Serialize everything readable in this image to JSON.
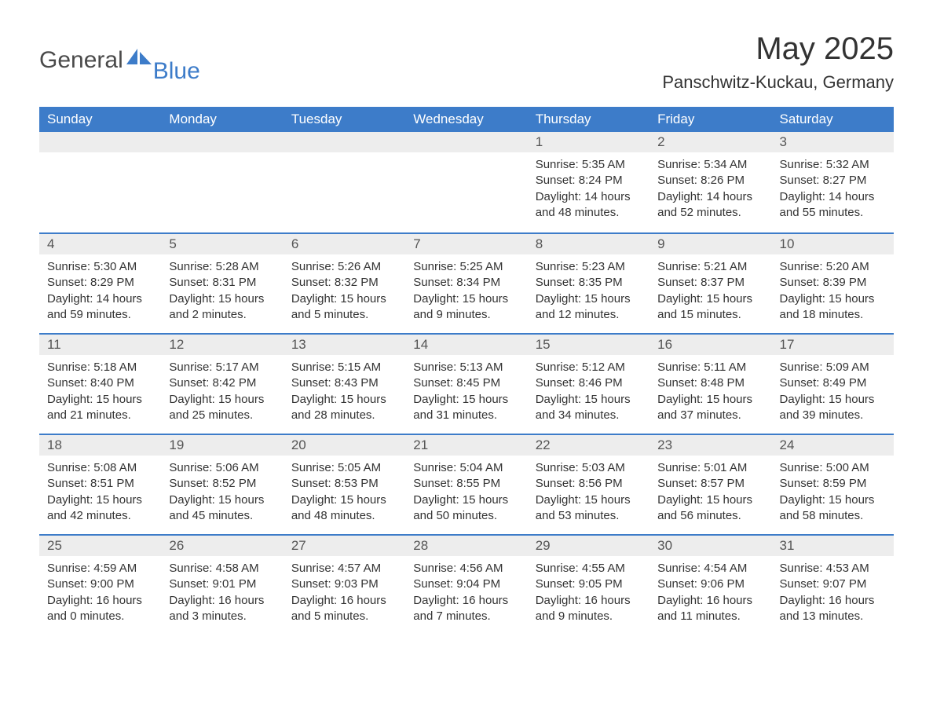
{
  "brand": {
    "word1": "General",
    "word2": "Blue"
  },
  "title": "May 2025",
  "location": "Panschwitz-Kuckau, Germany",
  "colors": {
    "header_bg": "#3d7cc9",
    "header_text": "#ffffff",
    "daynum_bg": "#ededed",
    "row_border": "#3d7cc9",
    "body_text": "#333333",
    "page_bg": "#ffffff"
  },
  "weekdays": [
    "Sunday",
    "Monday",
    "Tuesday",
    "Wednesday",
    "Thursday",
    "Friday",
    "Saturday"
  ],
  "weeks": [
    [
      {
        "empty": true
      },
      {
        "empty": true
      },
      {
        "empty": true
      },
      {
        "empty": true
      },
      {
        "day": "1",
        "sunrise": "Sunrise: 5:35 AM",
        "sunset": "Sunset: 8:24 PM",
        "daylight": "Daylight: 14 hours and 48 minutes."
      },
      {
        "day": "2",
        "sunrise": "Sunrise: 5:34 AM",
        "sunset": "Sunset: 8:26 PM",
        "daylight": "Daylight: 14 hours and 52 minutes."
      },
      {
        "day": "3",
        "sunrise": "Sunrise: 5:32 AM",
        "sunset": "Sunset: 8:27 PM",
        "daylight": "Daylight: 14 hours and 55 minutes."
      }
    ],
    [
      {
        "day": "4",
        "sunrise": "Sunrise: 5:30 AM",
        "sunset": "Sunset: 8:29 PM",
        "daylight": "Daylight: 14 hours and 59 minutes."
      },
      {
        "day": "5",
        "sunrise": "Sunrise: 5:28 AM",
        "sunset": "Sunset: 8:31 PM",
        "daylight": "Daylight: 15 hours and 2 minutes."
      },
      {
        "day": "6",
        "sunrise": "Sunrise: 5:26 AM",
        "sunset": "Sunset: 8:32 PM",
        "daylight": "Daylight: 15 hours and 5 minutes."
      },
      {
        "day": "7",
        "sunrise": "Sunrise: 5:25 AM",
        "sunset": "Sunset: 8:34 PM",
        "daylight": "Daylight: 15 hours and 9 minutes."
      },
      {
        "day": "8",
        "sunrise": "Sunrise: 5:23 AM",
        "sunset": "Sunset: 8:35 PM",
        "daylight": "Daylight: 15 hours and 12 minutes."
      },
      {
        "day": "9",
        "sunrise": "Sunrise: 5:21 AM",
        "sunset": "Sunset: 8:37 PM",
        "daylight": "Daylight: 15 hours and 15 minutes."
      },
      {
        "day": "10",
        "sunrise": "Sunrise: 5:20 AM",
        "sunset": "Sunset: 8:39 PM",
        "daylight": "Daylight: 15 hours and 18 minutes."
      }
    ],
    [
      {
        "day": "11",
        "sunrise": "Sunrise: 5:18 AM",
        "sunset": "Sunset: 8:40 PM",
        "daylight": "Daylight: 15 hours and 21 minutes."
      },
      {
        "day": "12",
        "sunrise": "Sunrise: 5:17 AM",
        "sunset": "Sunset: 8:42 PM",
        "daylight": "Daylight: 15 hours and 25 minutes."
      },
      {
        "day": "13",
        "sunrise": "Sunrise: 5:15 AM",
        "sunset": "Sunset: 8:43 PM",
        "daylight": "Daylight: 15 hours and 28 minutes."
      },
      {
        "day": "14",
        "sunrise": "Sunrise: 5:13 AM",
        "sunset": "Sunset: 8:45 PM",
        "daylight": "Daylight: 15 hours and 31 minutes."
      },
      {
        "day": "15",
        "sunrise": "Sunrise: 5:12 AM",
        "sunset": "Sunset: 8:46 PM",
        "daylight": "Daylight: 15 hours and 34 minutes."
      },
      {
        "day": "16",
        "sunrise": "Sunrise: 5:11 AM",
        "sunset": "Sunset: 8:48 PM",
        "daylight": "Daylight: 15 hours and 37 minutes."
      },
      {
        "day": "17",
        "sunrise": "Sunrise: 5:09 AM",
        "sunset": "Sunset: 8:49 PM",
        "daylight": "Daylight: 15 hours and 39 minutes."
      }
    ],
    [
      {
        "day": "18",
        "sunrise": "Sunrise: 5:08 AM",
        "sunset": "Sunset: 8:51 PM",
        "daylight": "Daylight: 15 hours and 42 minutes."
      },
      {
        "day": "19",
        "sunrise": "Sunrise: 5:06 AM",
        "sunset": "Sunset: 8:52 PM",
        "daylight": "Daylight: 15 hours and 45 minutes."
      },
      {
        "day": "20",
        "sunrise": "Sunrise: 5:05 AM",
        "sunset": "Sunset: 8:53 PM",
        "daylight": "Daylight: 15 hours and 48 minutes."
      },
      {
        "day": "21",
        "sunrise": "Sunrise: 5:04 AM",
        "sunset": "Sunset: 8:55 PM",
        "daylight": "Daylight: 15 hours and 50 minutes."
      },
      {
        "day": "22",
        "sunrise": "Sunrise: 5:03 AM",
        "sunset": "Sunset: 8:56 PM",
        "daylight": "Daylight: 15 hours and 53 minutes."
      },
      {
        "day": "23",
        "sunrise": "Sunrise: 5:01 AM",
        "sunset": "Sunset: 8:57 PM",
        "daylight": "Daylight: 15 hours and 56 minutes."
      },
      {
        "day": "24",
        "sunrise": "Sunrise: 5:00 AM",
        "sunset": "Sunset: 8:59 PM",
        "daylight": "Daylight: 15 hours and 58 minutes."
      }
    ],
    [
      {
        "day": "25",
        "sunrise": "Sunrise: 4:59 AM",
        "sunset": "Sunset: 9:00 PM",
        "daylight": "Daylight: 16 hours and 0 minutes."
      },
      {
        "day": "26",
        "sunrise": "Sunrise: 4:58 AM",
        "sunset": "Sunset: 9:01 PM",
        "daylight": "Daylight: 16 hours and 3 minutes."
      },
      {
        "day": "27",
        "sunrise": "Sunrise: 4:57 AM",
        "sunset": "Sunset: 9:03 PM",
        "daylight": "Daylight: 16 hours and 5 minutes."
      },
      {
        "day": "28",
        "sunrise": "Sunrise: 4:56 AM",
        "sunset": "Sunset: 9:04 PM",
        "daylight": "Daylight: 16 hours and 7 minutes."
      },
      {
        "day": "29",
        "sunrise": "Sunrise: 4:55 AM",
        "sunset": "Sunset: 9:05 PM",
        "daylight": "Daylight: 16 hours and 9 minutes."
      },
      {
        "day": "30",
        "sunrise": "Sunrise: 4:54 AM",
        "sunset": "Sunset: 9:06 PM",
        "daylight": "Daylight: 16 hours and 11 minutes."
      },
      {
        "day": "31",
        "sunrise": "Sunrise: 4:53 AM",
        "sunset": "Sunset: 9:07 PM",
        "daylight": "Daylight: 16 hours and 13 minutes."
      }
    ]
  ]
}
